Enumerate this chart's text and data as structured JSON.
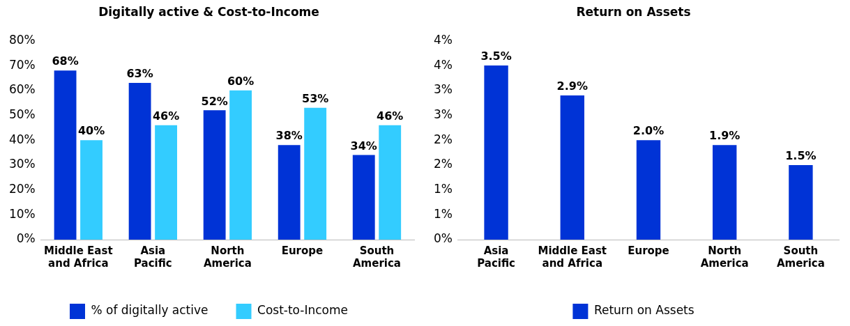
{
  "chart_data": [
    {
      "type": "bar",
      "title": "Digitally active & Cost-to-Income",
      "categories": [
        "Middle East and Africa",
        "Asia Pacific",
        "North America",
        "Europe",
        "South America"
      ],
      "series": [
        {
          "name": "% of digitally active",
          "color": "#0033d6",
          "values": [
            68,
            63,
            52,
            38,
            34
          ],
          "value_labels": [
            "68%",
            "63%",
            "52%",
            "38%",
            "34%"
          ]
        },
        {
          "name": "Cost-to-Income",
          "color": "#33ccff",
          "values": [
            40,
            46,
            60,
            53,
            46
          ],
          "value_labels": [
            "40%",
            "46%",
            "60%",
            "53%",
            "46%"
          ]
        }
      ],
      "ylim": [
        0,
        80
      ],
      "yticks": [
        {
          "value": 0,
          "label": "0%"
        },
        {
          "value": 10,
          "label": "10%"
        },
        {
          "value": 20,
          "label": "20%"
        },
        {
          "value": 30,
          "label": "30%"
        },
        {
          "value": 40,
          "label": "40%"
        },
        {
          "value": 50,
          "label": "50%"
        },
        {
          "value": 60,
          "label": "60%"
        },
        {
          "value": 70,
          "label": "70%"
        },
        {
          "value": 80,
          "label": "80%"
        }
      ],
      "grid": false,
      "legend": "bottom"
    },
    {
      "type": "bar",
      "title": "Return on Assets",
      "categories": [
        "Asia Pacific",
        "Middle East and Africa",
        "Europe",
        "North America",
        "South America"
      ],
      "series": [
        {
          "name": "Return on Assets",
          "color": "#0033d6",
          "values": [
            3.5,
            2.9,
            2.0,
            1.9,
            1.5
          ],
          "value_labels": [
            "3.5%",
            "2.9%",
            "2.0%",
            "1.9%",
            "1.5%"
          ]
        }
      ],
      "ylim": [
        0,
        4
      ],
      "yticks": [
        {
          "value": 0,
          "label": "0%"
        },
        {
          "value": 0.5,
          "label": "1%"
        },
        {
          "value": 1,
          "label": "1%"
        },
        {
          "value": 1.5,
          "label": "2%"
        },
        {
          "value": 2,
          "label": "2%"
        },
        {
          "value": 2.5,
          "label": "3%"
        },
        {
          "value": 3,
          "label": "3%"
        },
        {
          "value": 3.5,
          "label": "4%"
        },
        {
          "value": 4,
          "label": "4%"
        }
      ],
      "grid": false,
      "legend": "bottom"
    }
  ]
}
